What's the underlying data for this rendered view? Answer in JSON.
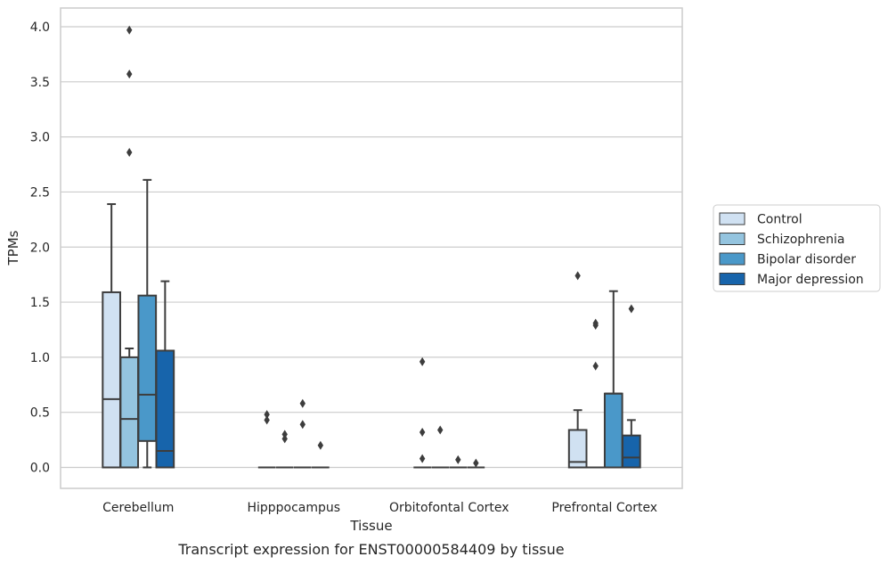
{
  "chart_data": {
    "type": "boxplot",
    "caption": "Transcript expression for ENST00000584409 by tissue",
    "xlabel": "Tissue",
    "ylabel": "TPMs",
    "ylim": [
      -0.19,
      4.17
    ],
    "yticks": [
      0.0,
      0.5,
      1.0,
      1.5,
      2.0,
      2.5,
      3.0,
      3.5,
      4.0
    ],
    "ytick_labels": [
      "0.0",
      "0.5",
      "1.0",
      "1.5",
      "2.0",
      "2.5",
      "3.0",
      "3.5",
      "4.0"
    ],
    "grid": "horizontal",
    "legend_position": "right",
    "categories": [
      "Cerebellum",
      "Hipppocampus",
      "Orbitofontal Cortex",
      "Prefrontal Cortex"
    ],
    "series": [
      {
        "name": "Control",
        "color": "#d0e1f2",
        "boxes": [
          {
            "whislo": 0.0,
            "q1": 0.0,
            "med": 0.62,
            "q3": 1.59,
            "whishi": 2.39,
            "fliers": []
          },
          {
            "whislo": 0.0,
            "q1": 0.0,
            "med": 0.0,
            "q3": 0.0,
            "whishi": 0.0,
            "fliers": [
              0.43,
              0.48
            ]
          },
          {
            "whislo": 0.0,
            "q1": 0.0,
            "med": 0.0,
            "q3": 0.0,
            "whishi": 0.0,
            "fliers": [
              0.08,
              0.32,
              0.96
            ]
          },
          {
            "whislo": 0.0,
            "q1": 0.0,
            "med": 0.05,
            "q3": 0.34,
            "whishi": 0.52,
            "fliers": [
              1.74
            ]
          }
        ]
      },
      {
        "name": "Schizophrenia",
        "color": "#94c4df",
        "boxes": [
          {
            "whislo": 0.0,
            "q1": 0.0,
            "med": 0.44,
            "q3": 1.0,
            "whishi": 1.08,
            "fliers": [
              2.86,
              3.57,
              3.97
            ]
          },
          {
            "whislo": 0.0,
            "q1": 0.0,
            "med": 0.0,
            "q3": 0.0,
            "whishi": 0.0,
            "fliers": [
              0.26,
              0.3
            ]
          },
          {
            "whislo": 0.0,
            "q1": 0.0,
            "med": 0.0,
            "q3": 0.0,
            "whishi": 0.0,
            "fliers": [
              0.34
            ]
          },
          {
            "whislo": 0.0,
            "q1": 0.0,
            "med": 0.0,
            "q3": 0.0,
            "whishi": 0.0,
            "fliers": [
              0.92,
              1.29,
              1.31
            ]
          }
        ]
      },
      {
        "name": "Bipolar disorder",
        "color": "#4a98c9",
        "boxes": [
          {
            "whislo": 0.0,
            "q1": 0.24,
            "med": 0.66,
            "q3": 1.56,
            "whishi": 2.61,
            "fliers": []
          },
          {
            "whislo": 0.0,
            "q1": 0.0,
            "med": 0.0,
            "q3": 0.0,
            "whishi": 0.0,
            "fliers": [
              0.39,
              0.58
            ]
          },
          {
            "whislo": 0.0,
            "q1": 0.0,
            "med": 0.0,
            "q3": 0.0,
            "whishi": 0.0,
            "fliers": [
              0.07
            ]
          },
          {
            "whislo": 0.0,
            "q1": 0.0,
            "med": 0.67,
            "q3": 0.67,
            "whishi": 1.6,
            "fliers": []
          }
        ]
      },
      {
        "name": "Major depression",
        "color": "#1764ab",
        "boxes": [
          {
            "whislo": 0.0,
            "q1": 0.0,
            "med": 0.15,
            "q3": 1.06,
            "whishi": 1.69,
            "fliers": []
          },
          {
            "whislo": 0.0,
            "q1": 0.0,
            "med": 0.0,
            "q3": 0.0,
            "whishi": 0.0,
            "fliers": [
              0.2
            ]
          },
          {
            "whislo": 0.0,
            "q1": 0.0,
            "med": 0.0,
            "q3": 0.0,
            "whishi": 0.0,
            "fliers": [
              0.04
            ]
          },
          {
            "whislo": 0.0,
            "q1": 0.0,
            "med": 0.09,
            "q3": 0.29,
            "whishi": 0.43,
            "fliers": [
              1.44
            ]
          }
        ]
      }
    ]
  }
}
